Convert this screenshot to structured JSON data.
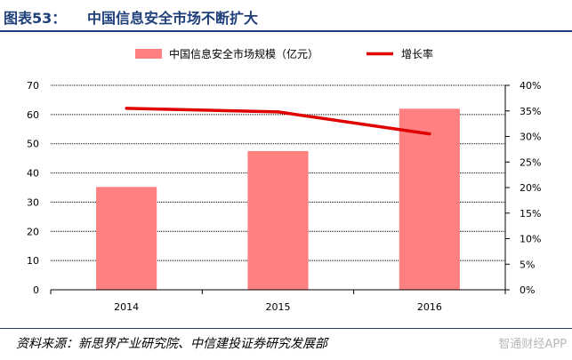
{
  "figure": {
    "label": "图表53：",
    "title": "中国信息安全市场不断扩大"
  },
  "source": "资料来源：新思界产业研究院、中信建投证券研究发展部",
  "watermark": "智通财经APP",
  "colors": {
    "bar": "#ff8080",
    "line": "#e00000",
    "caption": "#1f3f7a"
  },
  "chart_data": {
    "type": "bar",
    "title": "",
    "categories": [
      "2014",
      "2015",
      "2016"
    ],
    "series": [
      {
        "name": "中国信息安全市场规模（亿元）",
        "type": "bar",
        "axis": "left",
        "values": [
          35.2,
          47.5,
          62.0
        ]
      },
      {
        "name": "增长率",
        "type": "line",
        "axis": "right",
        "values": [
          0.355,
          0.348,
          0.305
        ]
      }
    ],
    "y_left": {
      "min": 0,
      "max": 70,
      "ticks": [
        "0",
        "10",
        "20",
        "30",
        "40",
        "50",
        "60",
        "70"
      ]
    },
    "y_right": {
      "min": 0,
      "max": 0.4,
      "ticks": [
        "0%",
        "5%",
        "10%",
        "15%",
        "20%",
        "25%",
        "30%",
        "35%",
        "40%"
      ]
    },
    "grid": true,
    "legend": "top-center"
  }
}
